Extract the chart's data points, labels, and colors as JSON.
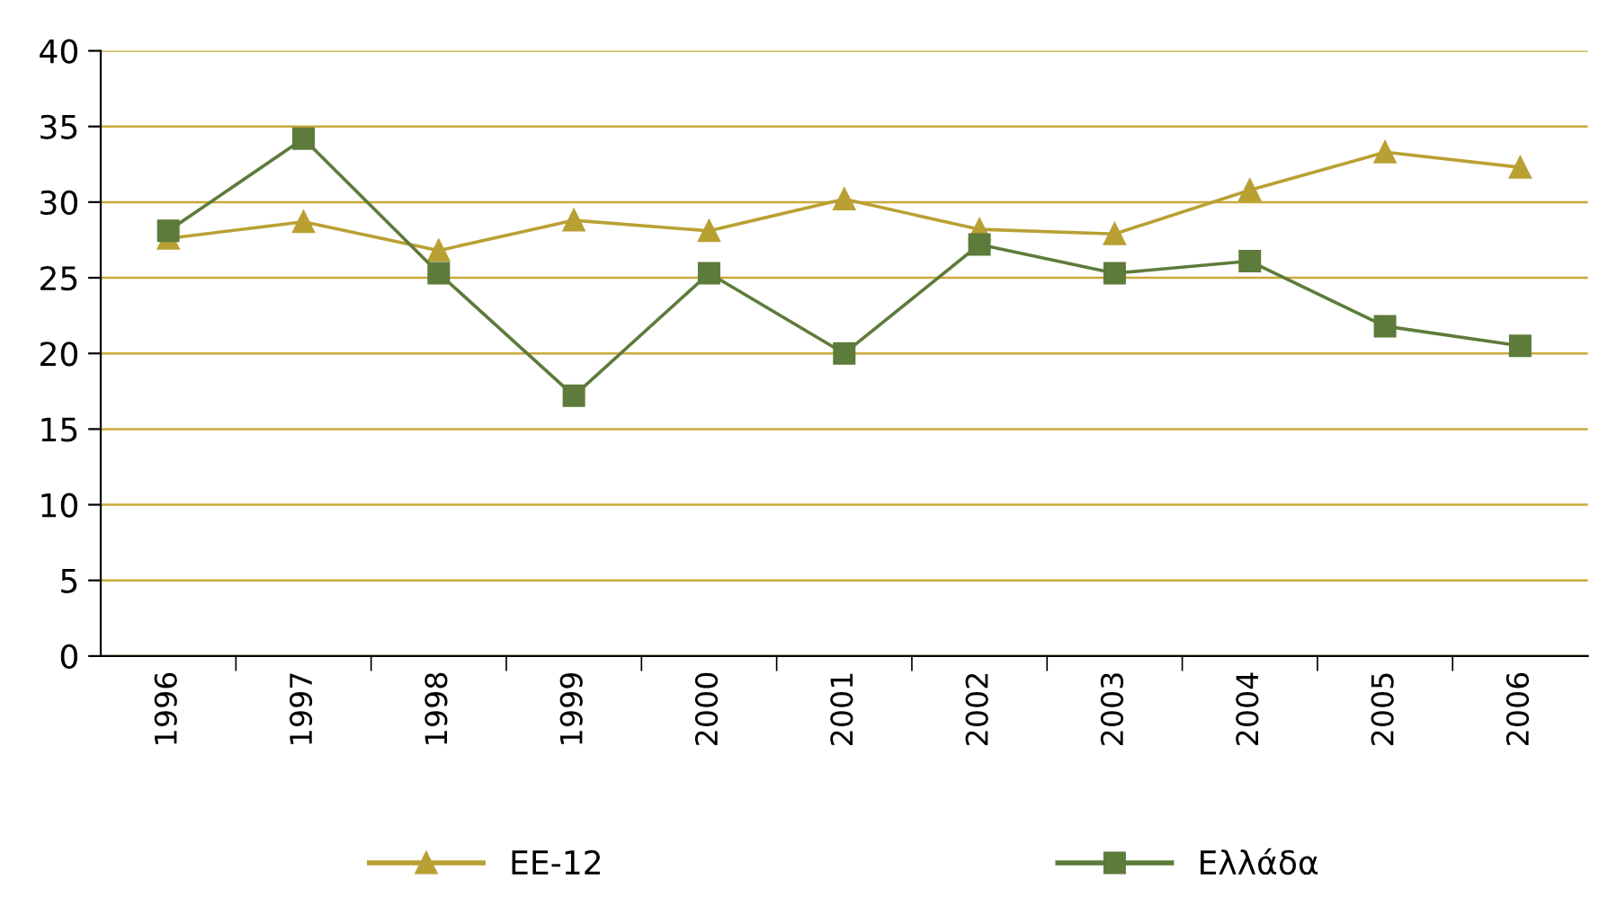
{
  "chart_data": {
    "type": "line",
    "categories": [
      "1996",
      "1997",
      "1998",
      "1999",
      "2000",
      "2001",
      "2002",
      "2003",
      "2004",
      "2005",
      "2006"
    ],
    "series": [
      {
        "name": "ΕΕ-12",
        "color": "#b9a033",
        "marker": "triangle",
        "values": [
          27.6,
          28.7,
          26.8,
          28.8,
          28.1,
          30.2,
          28.2,
          27.9,
          30.8,
          33.3,
          32.3
        ]
      },
      {
        "name": "Ελλάδα",
        "color": "#5d7b3a",
        "marker": "square",
        "values": [
          28.1,
          34.2,
          25.3,
          17.2,
          25.3,
          20.0,
          27.2,
          25.3,
          26.1,
          21.8,
          20.5
        ]
      }
    ],
    "ylim": [
      0,
      40
    ],
    "yticks": [
      0,
      5,
      10,
      15,
      20,
      25,
      30,
      35,
      40
    ],
    "grid": "y",
    "legend": "bottom"
  }
}
